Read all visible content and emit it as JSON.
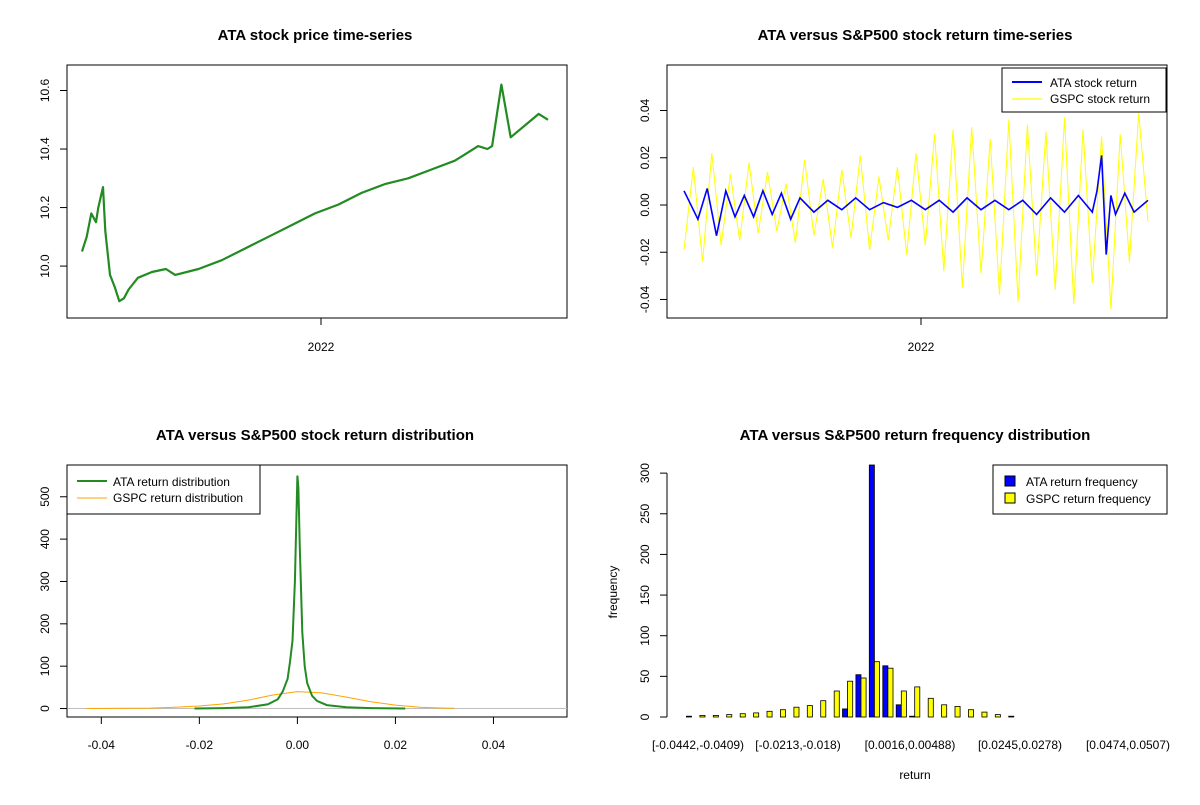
{
  "colors": {
    "ata_price": "#228B22",
    "ata_return": "#0000FF",
    "gspc_return": "#FFFF00",
    "ata_density": "#228B22",
    "gspc_density": "#FFA500",
    "zero_line": "#BEBEBE",
    "ata_bar": "#0000FF",
    "gspc_bar": "#FFFF00"
  },
  "chart_data": [
    {
      "id": "price",
      "type": "line",
      "title": "ATA stock price time-series",
      "xtick_labels": [
        "2022"
      ],
      "yticks": [
        10.0,
        10.2,
        10.4,
        10.6
      ],
      "ytick_labels": [
        "10.0",
        "10.2",
        "10.4",
        "10.6"
      ],
      "ylim": [
        9.85,
        10.67
      ],
      "series": [
        {
          "color_key": "ata_price",
          "x": [
            0.0,
            0.01,
            0.02,
            0.03,
            0.035,
            0.045,
            0.05,
            0.06,
            0.07,
            0.08,
            0.09,
            0.1,
            0.12,
            0.15,
            0.18,
            0.2,
            0.25,
            0.3,
            0.35,
            0.4,
            0.45,
            0.5,
            0.55,
            0.6,
            0.65,
            0.7,
            0.75,
            0.8,
            0.82,
            0.85,
            0.87,
            0.88,
            0.9,
            0.92,
            0.95,
            0.98,
            1.0
          ],
          "y": [
            10.05,
            10.1,
            10.18,
            10.15,
            10.2,
            10.27,
            10.12,
            9.97,
            9.93,
            9.88,
            9.89,
            9.92,
            9.96,
            9.98,
            9.99,
            9.97,
            9.99,
            10.02,
            10.06,
            10.1,
            10.14,
            10.18,
            10.21,
            10.25,
            10.28,
            10.3,
            10.33,
            10.36,
            10.38,
            10.41,
            10.4,
            10.41,
            10.62,
            10.44,
            10.48,
            10.52,
            10.5
          ]
        }
      ]
    },
    {
      "id": "returns",
      "type": "line",
      "title": "ATA versus S&P500 stock return time-series",
      "xtick_labels": [
        "2022"
      ],
      "yticks": [
        -0.04,
        -0.02,
        0.0,
        0.02,
        0.04
      ],
      "ytick_labels": [
        "-0.04",
        "-0.02",
        "0.00",
        "0.02",
        "0.04"
      ],
      "ylim": [
        -0.047,
        0.058
      ],
      "legend": {
        "position": "top-right",
        "entries": [
          {
            "label": "ATA stock return",
            "color_key": "ata_return"
          },
          {
            "label": "GSPC stock return",
            "color_key": "gspc_return"
          }
        ]
      },
      "series": [
        {
          "color_key": "gspc_return",
          "x": [
            0.0,
            0.02,
            0.04,
            0.06,
            0.08,
            0.1,
            0.12,
            0.14,
            0.16,
            0.18,
            0.2,
            0.22,
            0.24,
            0.26,
            0.28,
            0.3,
            0.32,
            0.34,
            0.36,
            0.38,
            0.4,
            0.42,
            0.44,
            0.46,
            0.48,
            0.5,
            0.52,
            0.54,
            0.56,
            0.58,
            0.6,
            0.62,
            0.64,
            0.66,
            0.68,
            0.7,
            0.72,
            0.74,
            0.76,
            0.78,
            0.8,
            0.82,
            0.84,
            0.86,
            0.88,
            0.9,
            0.92,
            0.94,
            0.96,
            0.98,
            1.0
          ],
          "y": [
            -0.019,
            0.016,
            -0.024,
            0.022,
            -0.017,
            0.013,
            -0.015,
            0.018,
            -0.012,
            0.014,
            -0.011,
            0.009,
            -0.016,
            0.019,
            -0.013,
            0.011,
            -0.018,
            0.015,
            -0.014,
            0.021,
            -0.019,
            0.012,
            -0.015,
            0.016,
            -0.021,
            0.022,
            -0.017,
            0.03,
            -0.028,
            0.032,
            -0.035,
            0.033,
            -0.029,
            0.028,
            -0.038,
            0.036,
            -0.041,
            0.034,
            -0.03,
            0.031,
            -0.036,
            0.037,
            -0.042,
            0.032,
            -0.033,
            0.029,
            -0.044,
            0.03,
            -0.024,
            0.039,
            -0.007
          ]
        },
        {
          "color_key": "ata_return",
          "x": [
            0.0,
            0.03,
            0.05,
            0.07,
            0.09,
            0.11,
            0.13,
            0.15,
            0.17,
            0.19,
            0.21,
            0.23,
            0.25,
            0.28,
            0.31,
            0.34,
            0.37,
            0.4,
            0.43,
            0.46,
            0.49,
            0.52,
            0.55,
            0.58,
            0.61,
            0.64,
            0.67,
            0.7,
            0.73,
            0.76,
            0.79,
            0.82,
            0.85,
            0.88,
            0.89,
            0.9,
            0.91,
            0.92,
            0.93,
            0.95,
            0.97,
            1.0
          ],
          "y": [
            0.006,
            -0.006,
            0.007,
            -0.013,
            0.006,
            -0.005,
            0.004,
            -0.005,
            0.006,
            -0.004,
            0.005,
            -0.006,
            0.003,
            -0.003,
            0.002,
            -0.002,
            0.003,
            -0.002,
            0.001,
            -0.001,
            0.002,
            -0.002,
            0.002,
            -0.003,
            0.003,
            -0.002,
            0.002,
            -0.002,
            0.002,
            -0.004,
            0.003,
            -0.003,
            0.004,
            -0.003,
            0.006,
            0.021,
            -0.021,
            0.004,
            -0.004,
            0.005,
            -0.003,
            0.002
          ]
        }
      ]
    },
    {
      "id": "density",
      "type": "line",
      "title": "ATA versus S&P500 stock return distribution",
      "xticks": [
        -0.04,
        -0.02,
        0.0,
        0.02,
        0.04
      ],
      "xtick_labels": [
        "-0.04",
        "-0.02",
        "0.00",
        "0.02",
        "0.04"
      ],
      "xlim": [
        -0.047,
        0.055
      ],
      "yticks": [
        0,
        100,
        200,
        300,
        400,
        500
      ],
      "ytick_labels": [
        "0",
        "100",
        "200",
        "300",
        "400",
        "500"
      ],
      "ylim": [
        -20,
        575
      ],
      "legend": {
        "position": "top-left",
        "entries": [
          {
            "label": "ATA return distribution",
            "color_key": "ata_density"
          },
          {
            "label": "GSPC return distribution",
            "color_key": "gspc_density"
          }
        ]
      },
      "series": [
        {
          "color_key": "gspc_density",
          "x": [
            -0.043,
            -0.035,
            -0.03,
            -0.025,
            -0.02,
            -0.015,
            -0.01,
            -0.005,
            0.0,
            0.005,
            0.01,
            0.015,
            0.02,
            0.025,
            0.03,
            0.032
          ],
          "y": [
            0,
            0.5,
            1,
            3,
            6,
            11,
            20,
            32,
            40,
            37,
            27,
            16,
            8,
            3,
            1,
            0.5
          ]
        },
        {
          "color_key": "ata_density",
          "x": [
            -0.021,
            -0.015,
            -0.01,
            -0.006,
            -0.004,
            -0.003,
            -0.002,
            -0.0015,
            -0.001,
            -0.0005,
            -0.0002,
            0.0,
            0.0002,
            0.0005,
            0.001,
            0.0015,
            0.002,
            0.003,
            0.004,
            0.006,
            0.01,
            0.015,
            0.022
          ],
          "y": [
            0,
            1,
            3,
            10,
            22,
            40,
            70,
            110,
            160,
            300,
            450,
            550,
            520,
            380,
            180,
            100,
            60,
            30,
            18,
            8,
            3,
            1,
            0
          ]
        }
      ]
    },
    {
      "id": "frequency",
      "type": "bar",
      "title": "ATA versus S&P500 return frequency distribution",
      "xlabel": "return",
      "ylabel": "frequency",
      "category_labels_shown": [
        "[-0.0442,-0.0409)",
        "[-0.0213,-0.018)",
        "[0.0016,0.00488)",
        "[0.0245,0.0278)",
        "[0.0474,0.0507)"
      ],
      "yticks": [
        0,
        50,
        100,
        150,
        200,
        250,
        300
      ],
      "ytick_labels": [
        "0",
        "50",
        "100",
        "150",
        "200",
        "250",
        "300"
      ],
      "ylim": [
        0,
        310
      ],
      "legend": {
        "position": "top-right",
        "entries": [
          {
            "label": "ATA return frequency",
            "color_key": "ata_bar"
          },
          {
            "label": "GSPC return frequency",
            "color_key": "gspc_bar"
          }
        ]
      },
      "series": [
        {
          "color_key": "ata_bar",
          "values": [
            0,
            0,
            0,
            0,
            0,
            0,
            0,
            0,
            0,
            0,
            0,
            0,
            10,
            52,
            310,
            63,
            15,
            1,
            0,
            0,
            0,
            0,
            0,
            0,
            0,
            0,
            0,
            0,
            0,
            0,
            0,
            0,
            0,
            0,
            0
          ]
        },
        {
          "color_key": "gspc_bar",
          "values": [
            1,
            2,
            2,
            3,
            4,
            5,
            7,
            9,
            12,
            14,
            20,
            32,
            44,
            48,
            68,
            60,
            32,
            37,
            23,
            15,
            13,
            9,
            6,
            3,
            1,
            0,
            0,
            0,
            0,
            0,
            0,
            0,
            0,
            0,
            0
          ]
        }
      ]
    }
  ]
}
